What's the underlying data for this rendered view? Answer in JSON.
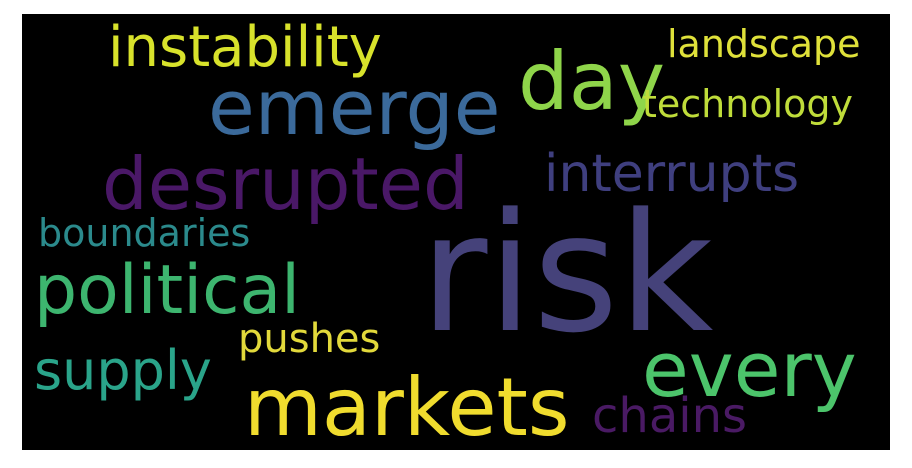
{
  "wordcloud": {
    "background": "#000000",
    "words": [
      {
        "text": "instability",
        "color": "#d8e22b"
      },
      {
        "text": "landscape",
        "color": "#dfe13a"
      },
      {
        "text": "day",
        "color": "#8fd54a"
      },
      {
        "text": "emerge",
        "color": "#3b6a9b"
      },
      {
        "text": "technology",
        "color": "#bfdc3a"
      },
      {
        "text": "desrupted",
        "color": "#4a1867"
      },
      {
        "text": "interrupts",
        "color": "#3f3f7f"
      },
      {
        "text": "boundaries",
        "color": "#2b8a8c"
      },
      {
        "text": "political",
        "color": "#3db56f"
      },
      {
        "text": "risk",
        "color": "#45427a"
      },
      {
        "text": "pushes",
        "color": "#e2d93b"
      },
      {
        "text": "supply",
        "color": "#2aa48a"
      },
      {
        "text": "every",
        "color": "#4cc46b"
      },
      {
        "text": "markets",
        "color": "#f0dc2e"
      },
      {
        "text": "chains",
        "color": "#4a1a64"
      }
    ]
  }
}
